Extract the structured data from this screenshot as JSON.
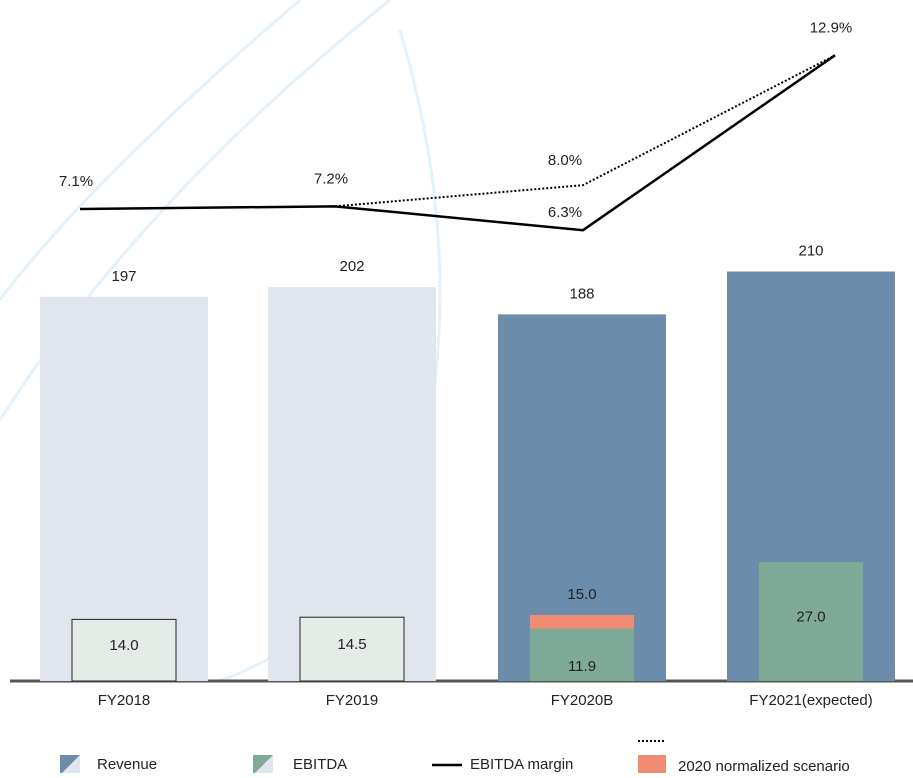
{
  "chart_data": {
    "type": "bar",
    "categories": [
      "FY2018",
      "FY2019",
      "FY2020B",
      "FY2021(expected)"
    ],
    "series": [
      {
        "name": "Revenue",
        "colors": [
          "#e1e6ee",
          "#e1e6ee",
          "#6b8caa",
          "#6b8caa"
        ],
        "values": [
          197,
          202,
          188,
          210
        ]
      },
      {
        "name": "EBITDA",
        "colors": [
          "#e5ece8",
          "#e5ece8",
          "#7faa98",
          "#7faa98"
        ],
        "values": [
          14.0,
          14.5,
          11.9,
          27.0
        ],
        "value_labels": [
          "14.0",
          "14.5",
          "11.9",
          "27.0"
        ]
      },
      {
        "name": "EBITDA margin",
        "type": "line",
        "color": "#000000",
        "values": [
          7.1,
          7.2,
          6.3,
          12.9
        ],
        "value_labels": [
          "7.1%",
          "7.2%",
          "6.3%",
          "12.9%"
        ]
      },
      {
        "name": "2020 normalized scenario",
        "color": "#f08c72",
        "values": [
          null,
          null,
          15.0,
          null
        ],
        "value_labels": [
          null,
          null,
          "15.0",
          null
        ],
        "margin": [
          null,
          7.2,
          8.0,
          12.9
        ],
        "margin_labels": [
          null,
          null,
          "8.0%",
          null
        ]
      }
    ]
  }
}
